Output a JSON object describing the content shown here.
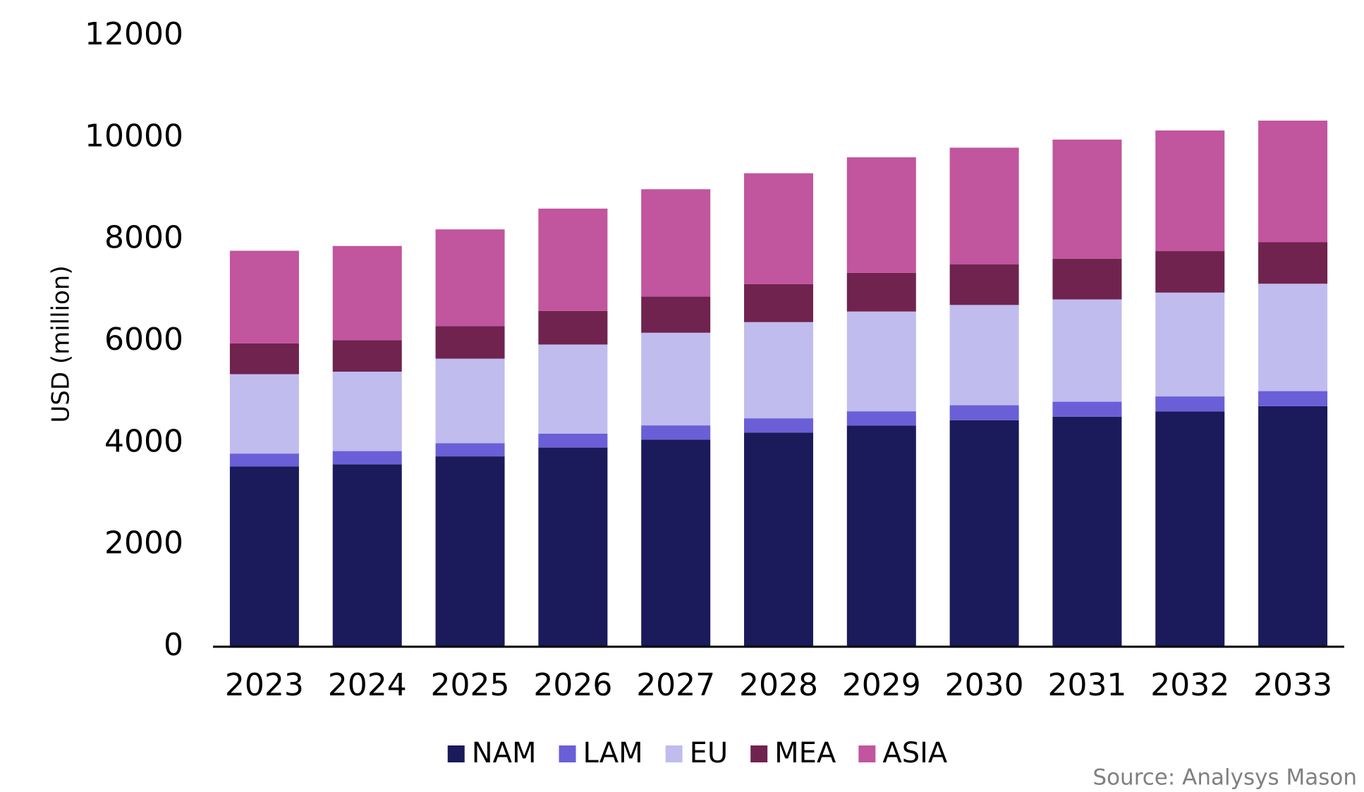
{
  "chart_data": {
    "type": "stacked_bar",
    "y_label": "USD (million)",
    "source": "Source: Analysys Mason",
    "categories": [
      "2023",
      "2024",
      "2025",
      "2026",
      "2027",
      "2028",
      "2029",
      "2030",
      "2031",
      "2032",
      "2033"
    ],
    "series": [
      {
        "name": "NAM",
        "color": "#1b1a5a",
        "values": [
          3540,
          3584,
          3740,
          3913,
          4069,
          4208,
          4346,
          4450,
          4519,
          4623,
          4727
        ]
      },
      {
        "name": "LAM",
        "color": "#6a5fd6",
        "values": [
          255,
          260,
          260,
          275,
          280,
          280,
          280,
          295,
          295,
          295,
          295
        ]
      },
      {
        "name": "EU",
        "color": "#c0bcee",
        "values": [
          1560,
          1560,
          1660,
          1750,
          1820,
          1890,
          1960,
          1970,
          2010,
          2040,
          2110
        ]
      },
      {
        "name": "MEA",
        "color": "#70234f",
        "values": [
          605,
          620,
          640,
          660,
          710,
          745,
          760,
          800,
          800,
          815,
          815
        ]
      },
      {
        "name": "ASIA",
        "color": "#c1559e",
        "values": [
          1820,
          1850,
          1900,
          2010,
          2110,
          2180,
          2270,
          2290,
          2340,
          2370,
          2390
        ]
      }
    ],
    "ylim": [
      0,
      12000
    ],
    "yticks": [
      0,
      2000,
      4000,
      6000,
      8000,
      10000,
      12000
    ],
    "grid": false,
    "legend": "bottom"
  }
}
